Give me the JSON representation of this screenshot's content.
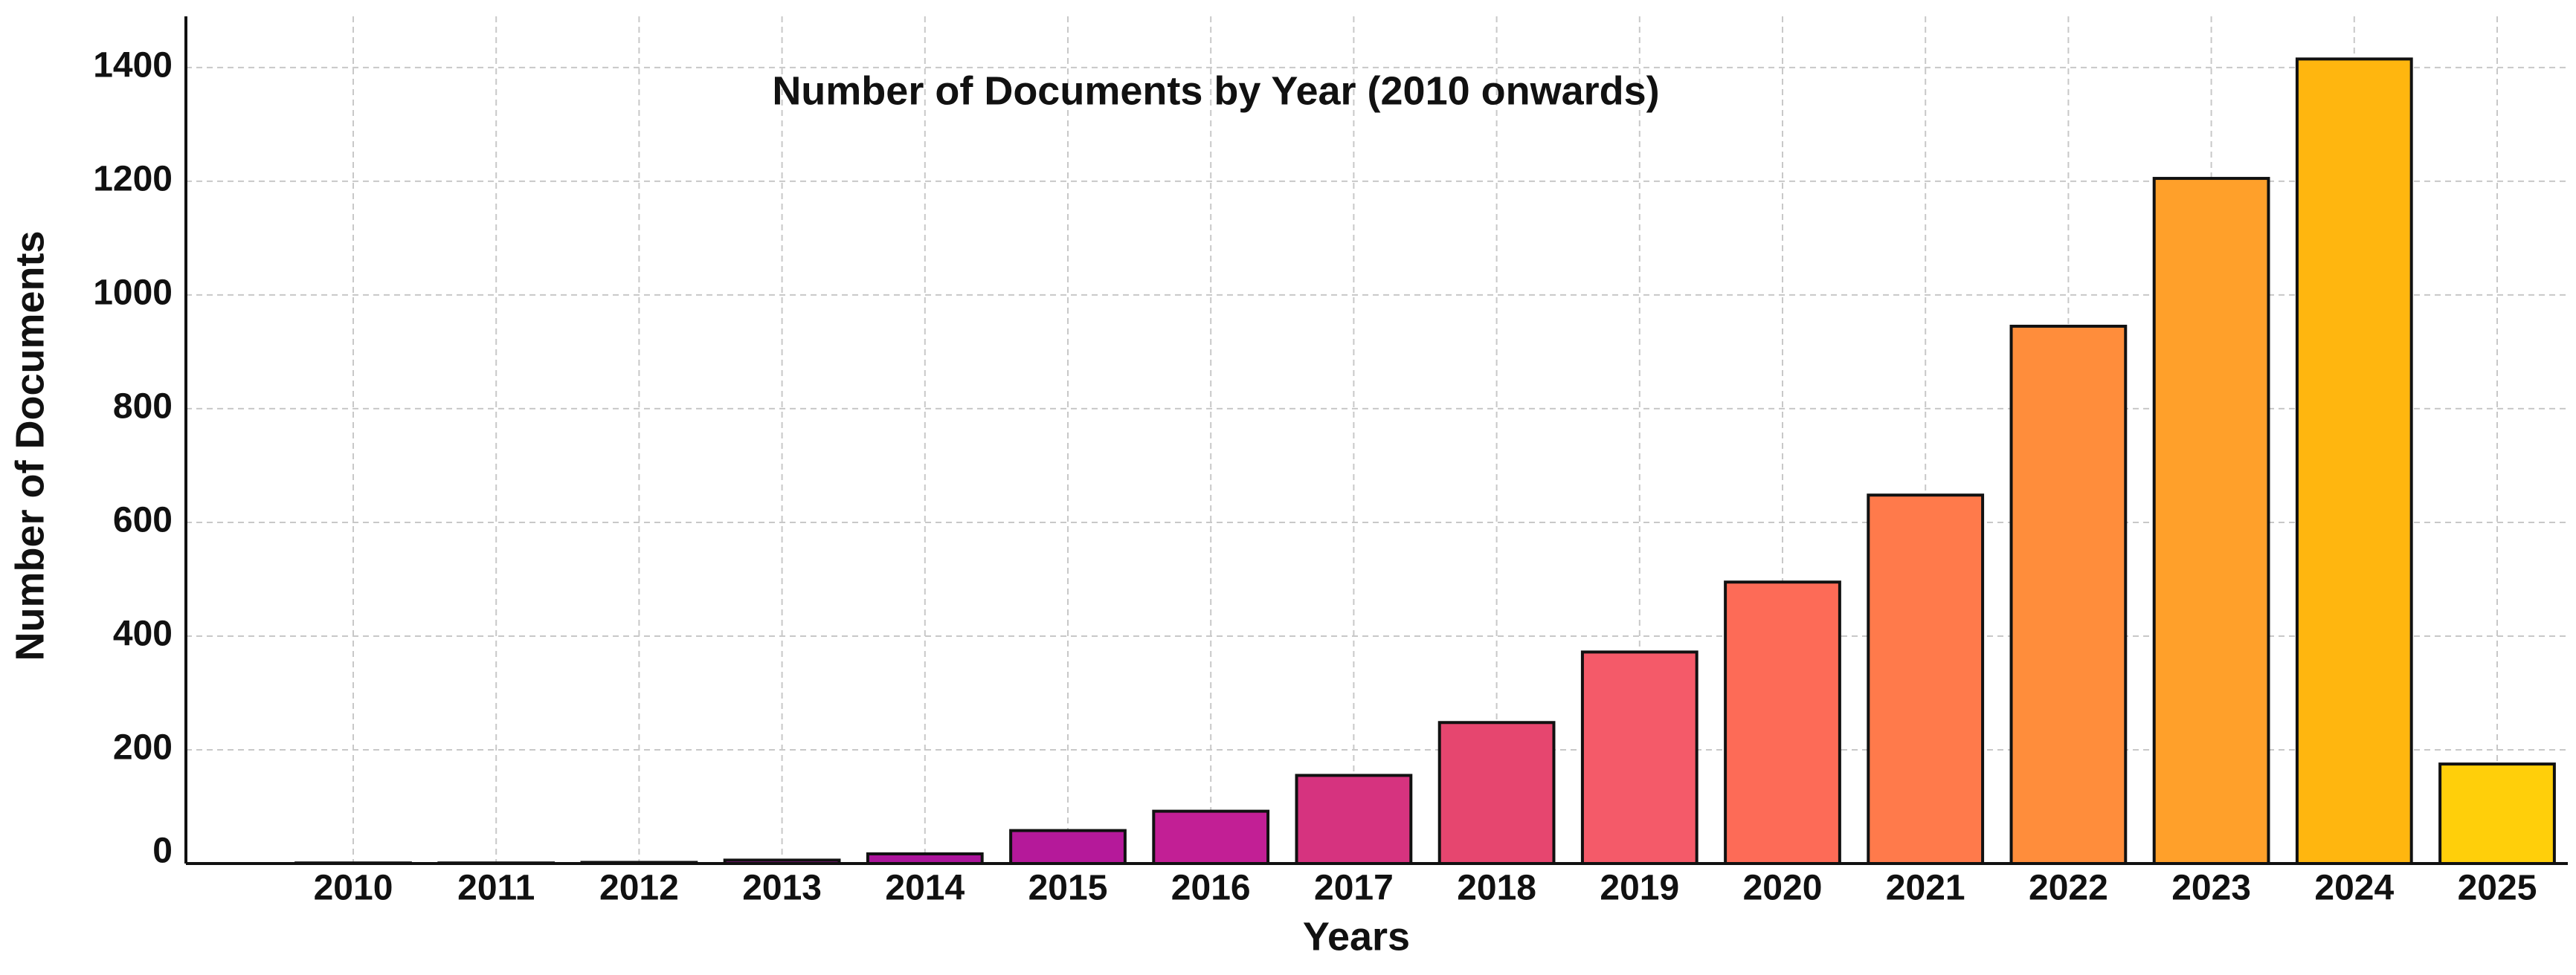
{
  "chart_data": {
    "type": "bar",
    "title": "Number of Documents by Year (2010 onwards)",
    "x_label": "Years",
    "y_label": "Number of Documents",
    "categories": [
      "2010",
      "2011",
      "2012",
      "2013",
      "2014",
      "2015",
      "2016",
      "2017",
      "2018",
      "2019",
      "2020",
      "2021",
      "2022",
      "2023",
      "2024",
      "2025"
    ],
    "values": [
      1,
      1,
      2,
      6,
      17,
      58,
      92,
      155,
      248,
      372,
      495,
      648,
      945,
      1205,
      1415,
      175
    ],
    "colors": [
      "#7a0a9f",
      "#84099f",
      "#900b9e",
      "#a0179c",
      "#ab159b",
      "#b5199a",
      "#c21f95",
      "#d6337f",
      "#e6466f",
      "#f45a69",
      "#fd6b57",
      "#ff7a4b",
      "#ff8d3b",
      "#ffa02a",
      "#ffb60f",
      "#ffcf0a"
    ],
    "ylim": [
      0,
      1490
    ],
    "yticks": [
      0,
      200,
      400,
      600,
      800,
      1000,
      1200,
      1400
    ],
    "grid": true
  }
}
